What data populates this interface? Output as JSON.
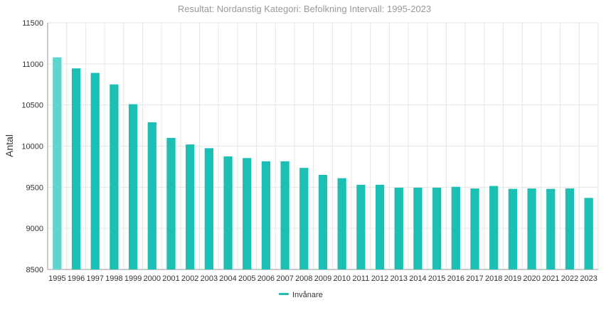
{
  "chart_data": {
    "type": "bar",
    "title": "Resultat: Nordanstig Kategori: Befolkning Intervall: 1995-2023",
    "xlabel": "",
    "ylabel": "Antal",
    "ylim": [
      8500,
      11500
    ],
    "yticks": [
      8500,
      9000,
      9500,
      10000,
      10500,
      11000,
      11500
    ],
    "grid": true,
    "legend_position": "bottom-center",
    "bar_color": "#1bbfb3",
    "highlight_color": "#5fd6cd",
    "categories": [
      "1995",
      "1996",
      "1997",
      "1998",
      "1999",
      "2000",
      "2001",
      "2002",
      "2003",
      "2004",
      "2005",
      "2006",
      "2007",
      "2008",
      "2009",
      "2010",
      "2011",
      "2012",
      "2013",
      "2014",
      "2015",
      "2016",
      "2017",
      "2018",
      "2019",
      "2020",
      "2021",
      "2022",
      "2023"
    ],
    "series": [
      {
        "name": "Invånare",
        "values": [
          11080,
          10945,
          10890,
          10750,
          10510,
          10290,
          10100,
          10020,
          9975,
          9875,
          9855,
          9815,
          9815,
          9735,
          9650,
          9610,
          9530,
          9530,
          9495,
          9495,
          9495,
          9505,
          9485,
          9515,
          9480,
          9485,
          9480,
          9485,
          9370
        ]
      }
    ]
  }
}
